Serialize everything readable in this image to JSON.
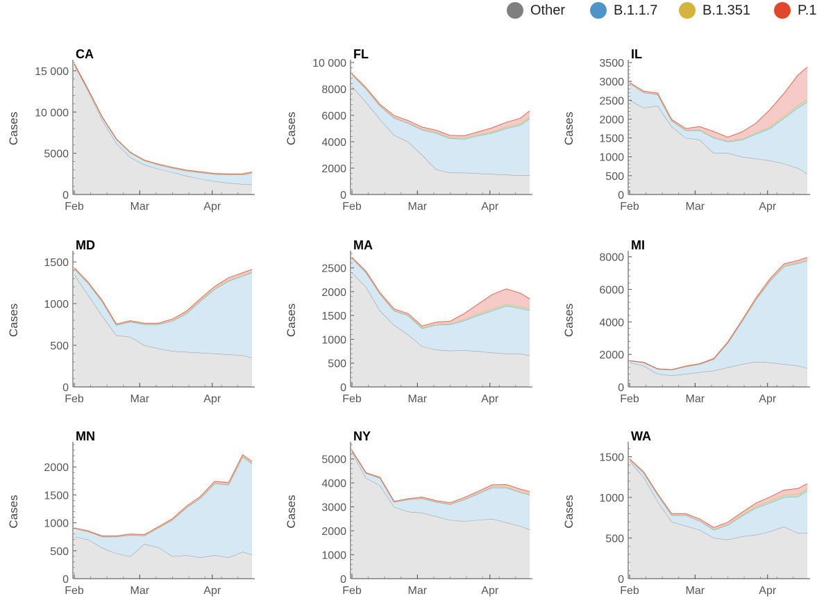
{
  "legend": [
    {
      "name": "Other",
      "color": "#7f7f7f"
    },
    {
      "name": "B.1.1.7",
      "color": "#4e94c6"
    },
    {
      "name": "B.1.351",
      "color": "#d3b43e"
    },
    {
      "name": "P.1",
      "color": "#e1472d"
    }
  ],
  "fill_colors": {
    "Other": "#e5e5e5",
    "B.1.1.7": "#d6e8f3",
    "B.1.351": "#c9dfc3",
    "P.1": "#f6cbc7"
  },
  "chart_data": [
    {
      "type": "area",
      "title": "CA",
      "ylabel": "Cases",
      "xticks": [
        "Feb",
        "Mar",
        "Apr"
      ],
      "ylim": [
        0,
        16000
      ],
      "yticks": [
        0,
        5000,
        10000,
        15000
      ],
      "ytick_labels": [
        "0",
        "5000",
        "10 000",
        "15 000"
      ],
      "x": [
        0,
        6,
        12,
        18,
        24,
        30,
        36,
        42,
        48,
        54,
        60,
        66,
        72,
        76
      ],
      "series": [
        {
          "name": "Other",
          "values": [
            15800,
            12500,
            9000,
            6200,
            4500,
            3600,
            3100,
            2700,
            2250,
            1900,
            1600,
            1400,
            1250,
            1200
          ]
        },
        {
          "name": "B.1.1.7",
          "values": [
            50,
            200,
            350,
            500,
            550,
            500,
            500,
            500,
            600,
            750,
            850,
            1000,
            1150,
            1400
          ]
        },
        {
          "name": "B.1.351",
          "values": [
            0,
            0,
            10,
            15,
            20,
            25,
            30,
            30,
            30,
            30,
            30,
            30,
            30,
            30
          ]
        },
        {
          "name": "P.1",
          "values": [
            0,
            10,
            20,
            30,
            40,
            50,
            60,
            70,
            80,
            80,
            80,
            80,
            90,
            100
          ]
        }
      ]
    },
    {
      "type": "area",
      "title": "FL",
      "ylabel": "Cases",
      "xticks": [
        "Feb",
        "Mar",
        "Apr"
      ],
      "ylim": [
        0,
        10000
      ],
      "yticks": [
        0,
        2000,
        4000,
        6000,
        8000,
        10000
      ],
      "ytick_labels": [
        "0",
        "2000",
        "4000",
        "6000",
        "8000",
        "10 000"
      ],
      "x": [
        0,
        6,
        12,
        18,
        24,
        30,
        36,
        42,
        48,
        54,
        60,
        66,
        72,
        76
      ],
      "series": [
        {
          "name": "Other",
          "values": [
            8200,
            7000,
            5700,
            4500,
            4000,
            3000,
            1900,
            1650,
            1650,
            1600,
            1550,
            1500,
            1450,
            1450
          ]
        },
        {
          "name": "B.1.1.7",
          "values": [
            900,
            1000,
            1000,
            1300,
            1400,
            1900,
            2750,
            2600,
            2550,
            2850,
            3100,
            3500,
            3800,
            4300
          ]
        },
        {
          "name": "B.1.351",
          "values": [
            0,
            20,
            30,
            40,
            50,
            60,
            70,
            80,
            90,
            100,
            110,
            120,
            130,
            140
          ]
        },
        {
          "name": "P.1",
          "values": [
            50,
            80,
            100,
            150,
            150,
            150,
            150,
            150,
            160,
            200,
            300,
            350,
            400,
            450
          ]
        }
      ]
    },
    {
      "type": "area",
      "title": "IL",
      "ylabel": "Cases",
      "xticks": [
        "Feb",
        "Mar",
        "Apr"
      ],
      "ylim": [
        0,
        3500
      ],
      "yticks": [
        0,
        500,
        1000,
        1500,
        2000,
        2500,
        3000,
        3500
      ],
      "ytick_labels": [
        "0",
        "500",
        "1000",
        "1500",
        "2000",
        "2500",
        "3000",
        "3500"
      ],
      "x": [
        0,
        6,
        12,
        18,
        24,
        30,
        36,
        42,
        48,
        54,
        60,
        66,
        72,
        76
      ],
      "series": [
        {
          "name": "Other",
          "values": [
            2500,
            2300,
            2350,
            1800,
            1500,
            1450,
            1100,
            1100,
            1000,
            950,
            900,
            820,
            700,
            550
          ]
        },
        {
          "name": "B.1.1.7",
          "values": [
            450,
            400,
            300,
            150,
            200,
            250,
            400,
            300,
            450,
            650,
            850,
            1200,
            1600,
            1900
          ]
        },
        {
          "name": "B.1.351",
          "values": [
            0,
            10,
            10,
            10,
            10,
            20,
            20,
            20,
            30,
            40,
            50,
            60,
            70,
            80
          ]
        },
        {
          "name": "P.1",
          "values": [
            20,
            30,
            30,
            30,
            40,
            80,
            150,
            100,
            180,
            250,
            450,
            600,
            800,
            850
          ]
        }
      ]
    },
    {
      "type": "area",
      "title": "MD",
      "ylabel": "Cases",
      "xticks": [
        "Feb",
        "Mar",
        "Apr"
      ],
      "ylim": [
        0,
        1600
      ],
      "yticks": [
        0,
        500,
        1000,
        1500
      ],
      "ytick_labels": [
        "0",
        "500",
        "1000",
        "1500"
      ],
      "x": [
        0,
        6,
        12,
        18,
        24,
        30,
        36,
        42,
        48,
        54,
        60,
        66,
        72,
        76
      ],
      "series": [
        {
          "name": "Other",
          "values": [
            1350,
            1100,
            850,
            620,
            600,
            500,
            460,
            430,
            420,
            410,
            400,
            390,
            380,
            350
          ]
        },
        {
          "name": "B.1.1.7",
          "values": [
            70,
            140,
            170,
            120,
            180,
            250,
            290,
            360,
            460,
            620,
            770,
            880,
            950,
            1020
          ]
        },
        {
          "name": "B.1.351",
          "values": [
            0,
            5,
            5,
            5,
            5,
            5,
            5,
            10,
            10,
            10,
            10,
            10,
            10,
            10
          ]
        },
        {
          "name": "P.1",
          "values": [
            10,
            10,
            10,
            10,
            10,
            10,
            10,
            15,
            20,
            20,
            25,
            30,
            30,
            30
          ]
        }
      ]
    },
    {
      "type": "area",
      "title": "MA",
      "ylabel": "Cases",
      "xticks": [
        "Feb",
        "Mar",
        "Apr"
      ],
      "ylim": [
        0,
        2800
      ],
      "yticks": [
        0,
        500,
        1000,
        1500,
        2000,
        2500
      ],
      "ytick_labels": [
        "0",
        "500",
        "1000",
        "1500",
        "2000",
        "2500"
      ],
      "x": [
        0,
        6,
        12,
        18,
        24,
        30,
        36,
        42,
        48,
        54,
        60,
        66,
        72,
        76
      ],
      "series": [
        {
          "name": "Other",
          "values": [
            2400,
            2100,
            1600,
            1300,
            1100,
            850,
            780,
            760,
            770,
            750,
            720,
            700,
            700,
            660
          ]
        },
        {
          "name": "B.1.1.7",
          "values": [
            300,
            300,
            350,
            300,
            400,
            380,
            520,
            550,
            620,
            750,
            880,
            1000,
            950,
            950
          ]
        },
        {
          "name": "B.1.351",
          "values": [
            0,
            10,
            10,
            10,
            10,
            20,
            20,
            20,
            30,
            40,
            40,
            40,
            40,
            40
          ]
        },
        {
          "name": "P.1",
          "values": [
            20,
            20,
            20,
            30,
            30,
            30,
            40,
            50,
            120,
            200,
            300,
            320,
            280,
            200
          ]
        }
      ]
    },
    {
      "type": "area",
      "title": "MI",
      "ylabel": "Cases",
      "xticks": [
        "Feb",
        "Mar",
        "Apr"
      ],
      "ylim": [
        0,
        8200
      ],
      "yticks": [
        0,
        2000,
        4000,
        6000,
        8000
      ],
      "ytick_labels": [
        "0",
        "2000",
        "4000",
        "6000",
        "8000"
      ],
      "x": [
        0,
        6,
        12,
        18,
        24,
        30,
        36,
        42,
        48,
        54,
        60,
        66,
        72,
        76
      ],
      "series": [
        {
          "name": "Other",
          "values": [
            1500,
            1300,
            800,
            700,
            800,
            900,
            1000,
            1200,
            1400,
            1550,
            1500,
            1400,
            1300,
            1150
          ]
        },
        {
          "name": "B.1.1.7",
          "values": [
            100,
            200,
            300,
            350,
            450,
            500,
            700,
            1500,
            2600,
            3800,
            5000,
            6000,
            6300,
            6600
          ]
        },
        {
          "name": "B.1.351",
          "values": [
            0,
            5,
            5,
            5,
            10,
            10,
            20,
            30,
            40,
            50,
            60,
            60,
            60,
            60
          ]
        },
        {
          "name": "P.1",
          "values": [
            10,
            10,
            10,
            10,
            20,
            20,
            30,
            40,
            50,
            70,
            90,
            100,
            120,
            150
          ]
        }
      ]
    },
    {
      "type": "area",
      "title": "MN",
      "ylabel": "Cases",
      "xticks": [
        "Feb",
        "Mar",
        "Apr"
      ],
      "ylim": [
        0,
        2400
      ],
      "yticks": [
        0,
        500,
        1000,
        1500,
        2000
      ],
      "ytick_labels": [
        "0",
        "500",
        "1000",
        "1500",
        "2000"
      ],
      "x": [
        0,
        6,
        12,
        18,
        24,
        30,
        36,
        42,
        48,
        54,
        60,
        66,
        72,
        76
      ],
      "series": [
        {
          "name": "Other",
          "values": [
            750,
            700,
            550,
            450,
            400,
            620,
            560,
            400,
            420,
            380,
            420,
            380,
            480,
            430
          ]
        },
        {
          "name": "B.1.1.7",
          "values": [
            150,
            140,
            200,
            300,
            380,
            150,
            350,
            650,
            850,
            1060,
            1280,
            1300,
            1700,
            1630
          ]
        },
        {
          "name": "B.1.351",
          "values": [
            0,
            5,
            5,
            5,
            5,
            5,
            5,
            5,
            10,
            10,
            10,
            10,
            10,
            10
          ]
        },
        {
          "name": "P.1",
          "values": [
            10,
            10,
            10,
            10,
            15,
            15,
            15,
            20,
            20,
            25,
            30,
            30,
            30,
            30
          ]
        }
      ]
    },
    {
      "type": "area",
      "title": "NY",
      "ylabel": "Cases",
      "xticks": [
        "Feb",
        "Mar",
        "Apr"
      ],
      "ylim": [
        0,
        5600
      ],
      "yticks": [
        0,
        1000,
        2000,
        3000,
        4000,
        5000
      ],
      "ytick_labels": [
        "0",
        "1000",
        "2000",
        "3000",
        "4000",
        "5000"
      ],
      "x": [
        0,
        6,
        12,
        18,
        24,
        30,
        36,
        42,
        48,
        54,
        60,
        66,
        72,
        76
      ],
      "series": [
        {
          "name": "Other",
          "values": [
            5300,
            4200,
            3900,
            3000,
            2800,
            2750,
            2600,
            2450,
            2400,
            2450,
            2500,
            2350,
            2200,
            2050
          ]
        },
        {
          "name": "B.1.1.7",
          "values": [
            50,
            200,
            300,
            200,
            500,
            600,
            600,
            650,
            900,
            1100,
            1300,
            1450,
            1400,
            1450
          ]
        },
        {
          "name": "B.1.351",
          "values": [
            0,
            10,
            10,
            10,
            10,
            20,
            20,
            20,
            30,
            30,
            40,
            40,
            40,
            40
          ]
        },
        {
          "name": "P.1",
          "values": [
            10,
            20,
            20,
            20,
            30,
            40,
            40,
            50,
            60,
            70,
            80,
            90,
            100,
            100
          ]
        }
      ]
    },
    {
      "type": "area",
      "title": "WA",
      "ylabel": "Cases",
      "xticks": [
        "Feb",
        "Mar",
        "Apr"
      ],
      "ylim": [
        0,
        1650
      ],
      "yticks": [
        0,
        500,
        1000,
        1500
      ],
      "ytick_labels": [
        "0",
        "500",
        "1000",
        "1500"
      ],
      "x": [
        0,
        6,
        12,
        18,
        24,
        30,
        36,
        42,
        48,
        54,
        60,
        66,
        72,
        76
      ],
      "series": [
        {
          "name": "Other",
          "values": [
            1450,
            1250,
            950,
            700,
            650,
            600,
            500,
            480,
            520,
            540,
            580,
            640,
            560,
            560
          ]
        },
        {
          "name": "B.1.1.7",
          "values": [
            20,
            50,
            80,
            80,
            130,
            110,
            100,
            180,
            250,
            330,
            350,
            360,
            450,
            520
          ]
        },
        {
          "name": "B.1.351",
          "values": [
            0,
            5,
            5,
            5,
            5,
            5,
            10,
            10,
            15,
            20,
            25,
            30,
            30,
            30
          ]
        },
        {
          "name": "P.1",
          "values": [
            5,
            10,
            10,
            15,
            15,
            20,
            20,
            25,
            30,
            40,
            50,
            60,
            70,
            60
          ]
        }
      ]
    }
  ]
}
